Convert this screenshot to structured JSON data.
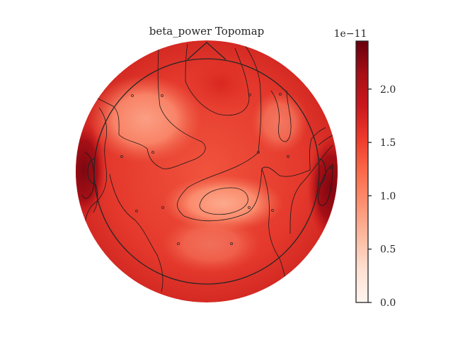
{
  "chart_data": {
    "type": "heatmap",
    "title": "beta_power Topomap",
    "colormap": "Reds",
    "colorbar": {
      "offset_label": "1e−11",
      "ticks": [
        0.0,
        0.5,
        1.0,
        1.5,
        2.0
      ],
      "tick_labels": [
        "0.0",
        "0.5",
        "1.0",
        "1.5",
        "2.0"
      ],
      "range": [
        0.0,
        2.45
      ],
      "location": "right"
    },
    "sensors_shown": 16,
    "head_outline": true,
    "contour_lines": true
  },
  "colors": {
    "low": "#fff5f0",
    "mid": "#fb6a4a",
    "high": "#67000d",
    "outline": "#262626"
  }
}
